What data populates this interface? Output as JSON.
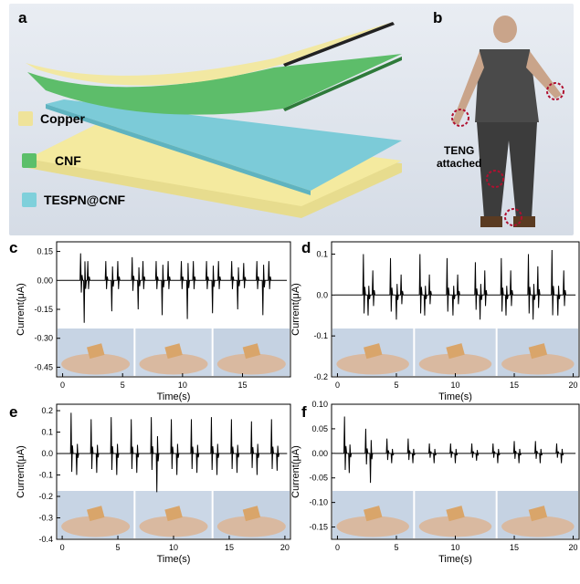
{
  "panels": {
    "a": "a",
    "b": "b",
    "c": "c",
    "d": "d",
    "e": "e",
    "f": "f"
  },
  "legend": [
    {
      "label": "Copper",
      "color": "#efe39a"
    },
    {
      "label": "CNF",
      "color": "#5cbf6a"
    },
    {
      "label": "TESPN@CNF",
      "color": "#7fd0db"
    }
  ],
  "human": {
    "label_line1": "TENG",
    "label_line2": "attached"
  },
  "chart_data": [
    {
      "id": "c",
      "type": "line",
      "xlabel": "Time(s)",
      "ylabel": "Current(μA)",
      "xlim": [
        -0.5,
        19
      ],
      "ylim": [
        -0.5,
        0.2
      ],
      "xticks": [
        0,
        5,
        10,
        15
      ],
      "yticks": [
        0.15,
        0.0,
        -0.15,
        -0.3,
        -0.45
      ],
      "ytick_labels": [
        "0.15",
        "0.00",
        "-0.15",
        "-0.30",
        "-0.45"
      ],
      "series": [
        {
          "spikes": [
            1.5,
            1.8,
            2.1,
            3.6,
            4.1,
            4.6,
            5.8,
            6.3,
            6.7,
            7.8,
            8.3,
            8.8,
            9.9,
            10.4,
            10.9,
            12.0,
            12.5,
            13.0,
            14.1,
            14.6,
            15.1,
            16.2,
            16.7,
            17.2
          ],
          "amp": [
            0.14,
            -0.22,
            0.1,
            0.1,
            -0.16,
            0.1,
            0.12,
            -0.15,
            0.1,
            0.1,
            -0.18,
            0.1,
            0.1,
            -0.2,
            0.1,
            0.1,
            -0.17,
            0.1,
            0.1,
            -0.15,
            0.09,
            0.1,
            -0.18,
            0.1
          ]
        }
      ]
    },
    {
      "id": "d",
      "type": "line",
      "xlabel": "Time(s)",
      "ylabel": "Current(μA)",
      "xlim": [
        -0.5,
        20.5
      ],
      "ylim": [
        -0.2,
        0.13
      ],
      "xticks": [
        0,
        5,
        10,
        15,
        20
      ],
      "yticks": [
        0.1,
        0.0,
        -0.1,
        -0.2
      ],
      "ytick_labels": [
        "0.1",
        "0.0",
        "-0.1",
        "-0.2"
      ],
      "series": [
        {
          "spikes": [
            2.2,
            2.6,
            3.0,
            4.5,
            5.0,
            5.4,
            7.0,
            7.4,
            7.8,
            9.3,
            9.8,
            10.2,
            11.7,
            12.1,
            12.5,
            13.9,
            14.3,
            14.7,
            16.2,
            16.6,
            17.0,
            18.2,
            18.7,
            19.2
          ],
          "amp": [
            0.1,
            -0.05,
            0.06,
            0.09,
            -0.06,
            0.05,
            0.1,
            -0.05,
            0.05,
            0.09,
            -0.05,
            0.05,
            0.08,
            -0.06,
            0.06,
            0.09,
            -0.05,
            0.06,
            0.1,
            -0.06,
            0.07,
            0.11,
            -0.05,
            0.06
          ]
        }
      ]
    },
    {
      "id": "e",
      "type": "line",
      "xlabel": "Time(s)",
      "ylabel": "Current(μA)",
      "xlim": [
        -0.5,
        20.5
      ],
      "ylim": [
        -0.4,
        0.23
      ],
      "xticks": [
        0,
        5,
        10,
        15,
        20
      ],
      "yticks": [
        0.2,
        0.1,
        0.0,
        -0.1,
        -0.2,
        -0.3,
        -0.4
      ],
      "ytick_labels": [
        "0.2",
        "0.1",
        "0.0",
        "-0.1",
        "-0.2",
        "-0.3",
        "-0.4"
      ],
      "series": [
        {
          "spikes": [
            0.8,
            1.3,
            2.6,
            3.1,
            4.4,
            4.9,
            6.2,
            6.7,
            8.0,
            8.5,
            9.8,
            10.3,
            11.6,
            12.1,
            13.4,
            13.9,
            15.2,
            15.7,
            17.0,
            17.5,
            18.8,
            19.3
          ],
          "amp": [
            0.19,
            -0.1,
            0.16,
            -0.09,
            0.17,
            -0.1,
            0.16,
            -0.09,
            0.17,
            -0.18,
            0.16,
            -0.1,
            0.16,
            -0.09,
            0.17,
            -0.1,
            0.16,
            -0.09,
            0.15,
            -0.1,
            0.16,
            -0.08
          ]
        }
      ]
    },
    {
      "id": "f",
      "type": "line",
      "xlabel": "Time(s)",
      "ylabel": "Current(μA)",
      "xlim": [
        -0.5,
        20.5
      ],
      "ylim": [
        -0.175,
        0.1
      ],
      "xticks": [
        0,
        5,
        10,
        15,
        20
      ],
      "yticks": [
        0.1,
        0.05,
        0.0,
        -0.05,
        -0.1,
        -0.15
      ],
      "ytick_labels": [
        "0.10",
        "0.05",
        "0.00",
        "-0.05",
        "-0.10",
        "-0.15"
      ],
      "series": [
        {
          "spikes": [
            0.6,
            1.0,
            2.4,
            2.8,
            4.2,
            4.6,
            6.0,
            6.4,
            7.8,
            8.2,
            9.6,
            10.0,
            11.4,
            11.8,
            13.2,
            13.6,
            15.0,
            15.4,
            16.8,
            17.2,
            18.6,
            19.0
          ],
          "amp": [
            0.075,
            -0.04,
            0.05,
            -0.06,
            0.03,
            -0.02,
            0.03,
            -0.02,
            0.02,
            -0.02,
            0.02,
            -0.02,
            0.02,
            -0.015,
            0.02,
            -0.02,
            0.025,
            -0.02,
            0.025,
            -0.02,
            0.02,
            -0.02
          ]
        }
      ]
    }
  ]
}
